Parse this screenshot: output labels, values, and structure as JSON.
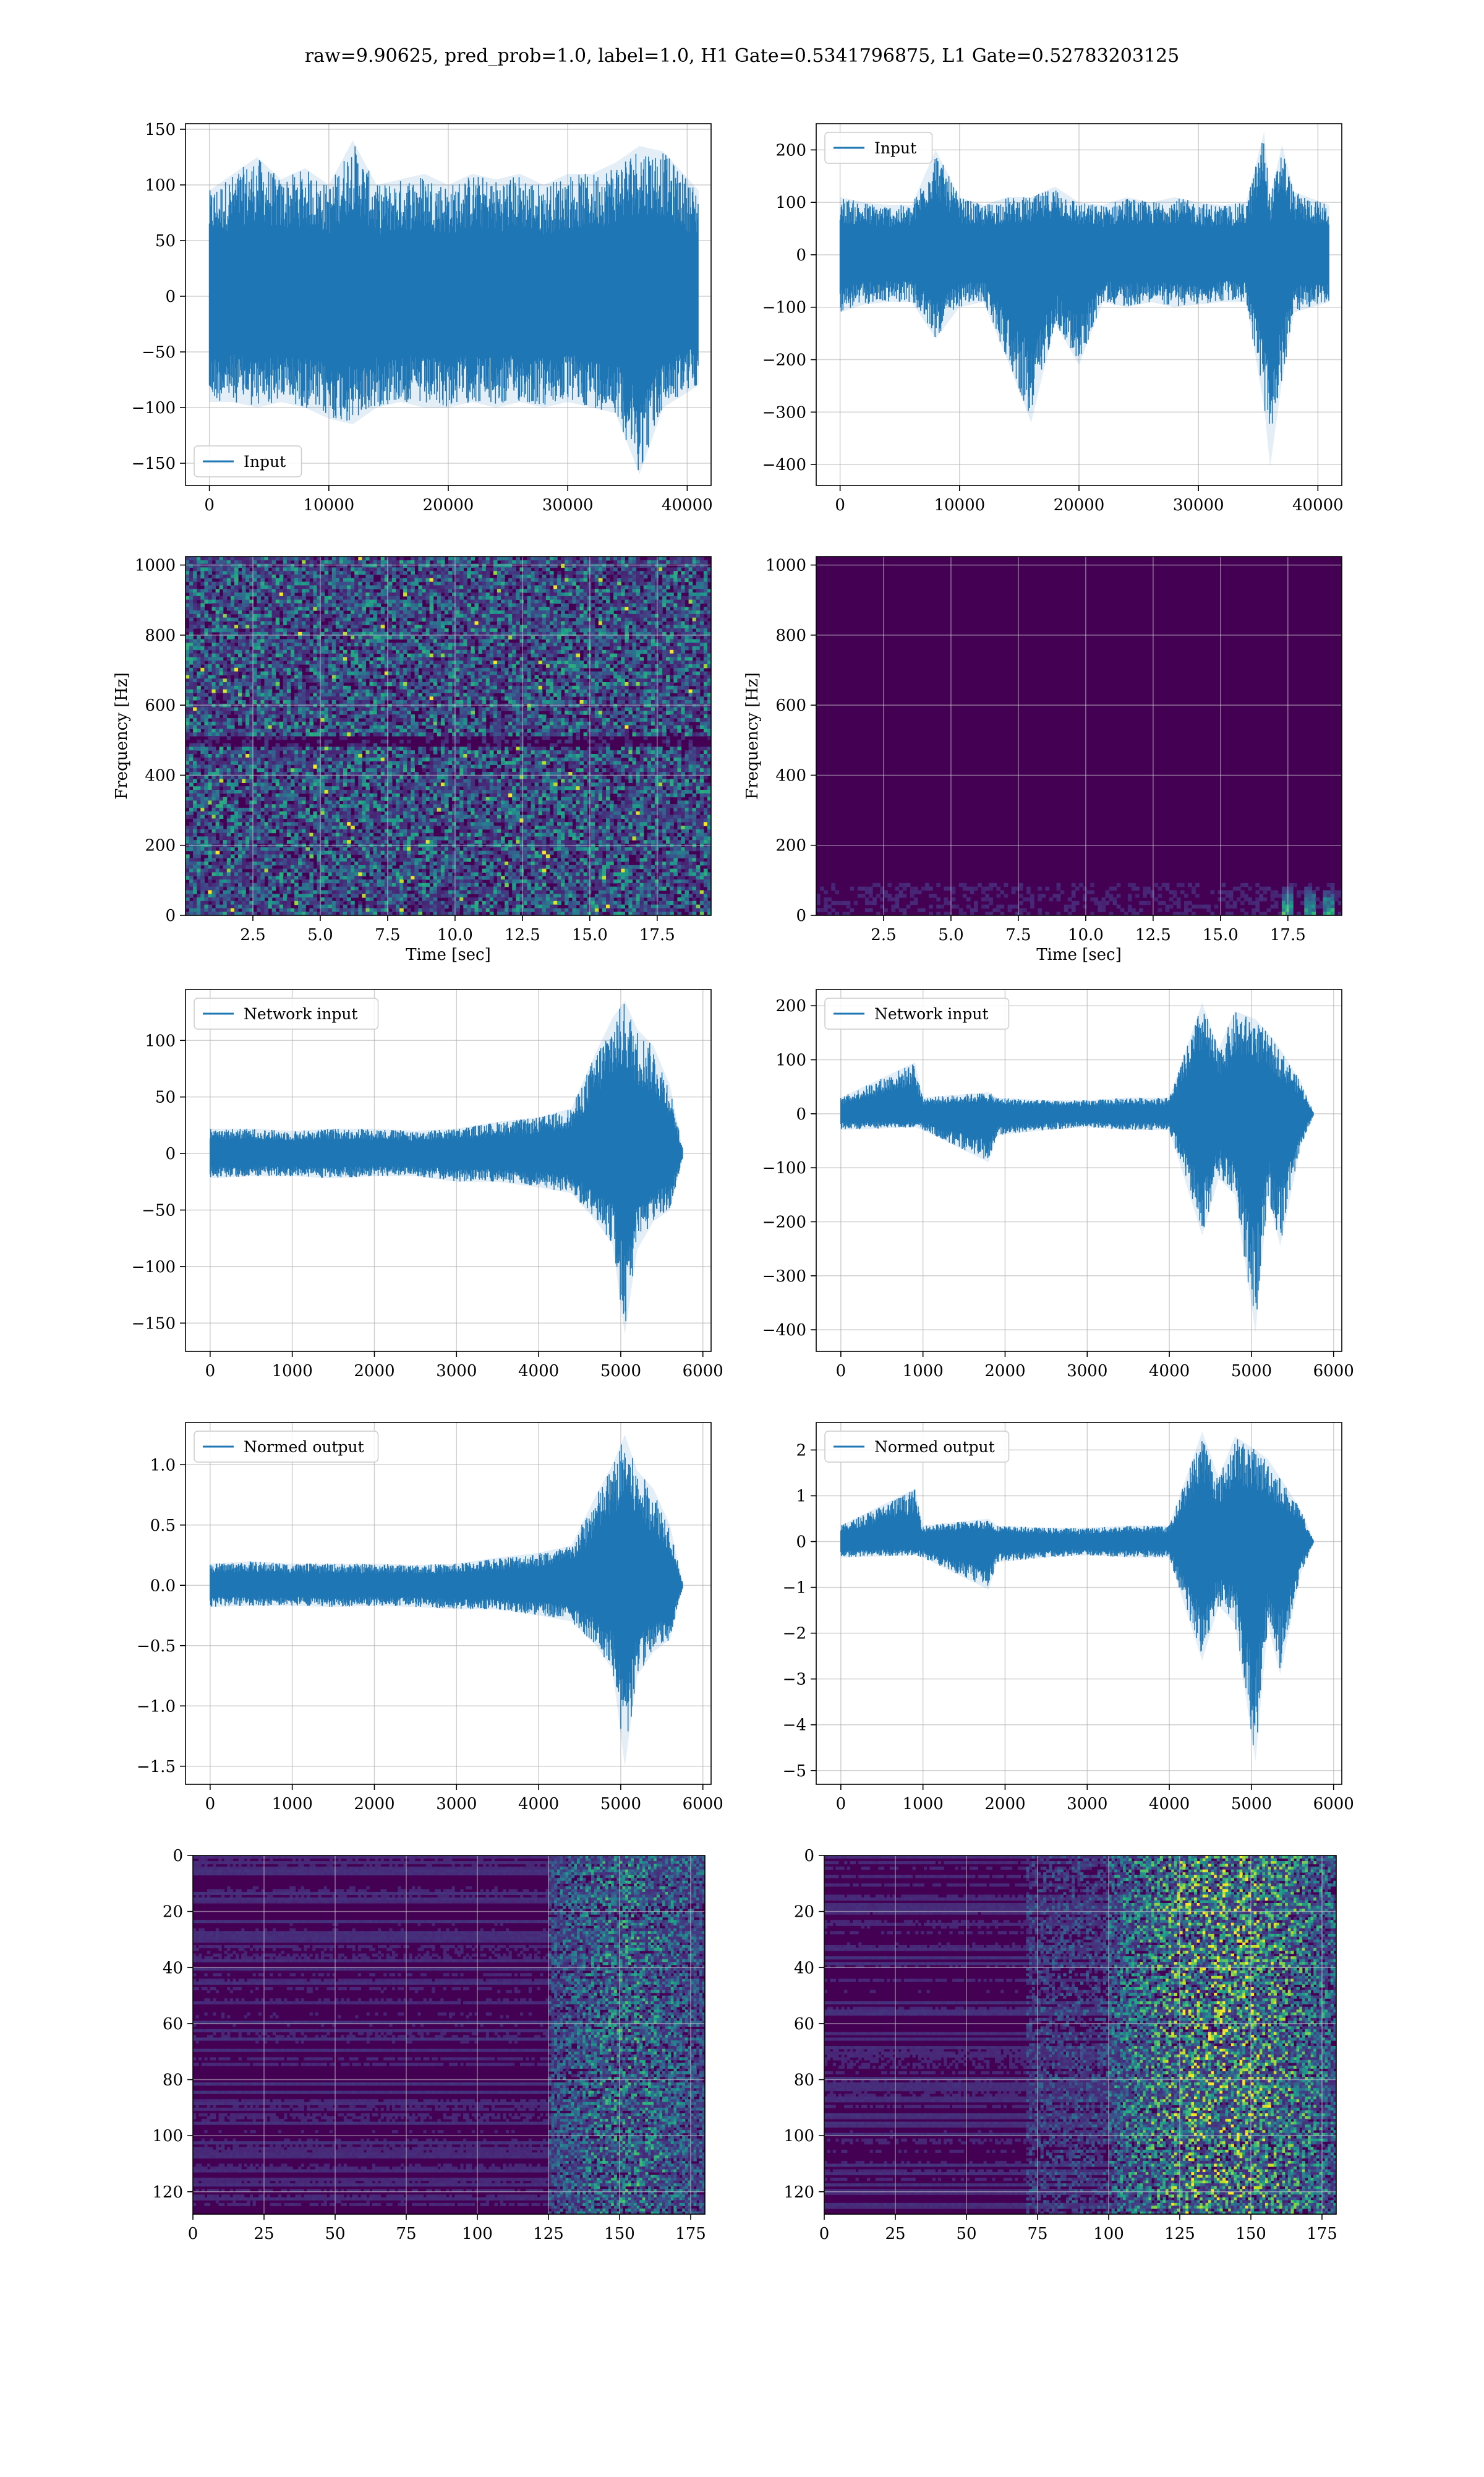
{
  "figure": {
    "title": "raw=9.90625, pred_prob=1.0, label=1.0, H1 Gate=0.5341796875, L1 Gate=0.52783203125"
  },
  "colors": {
    "line": "#1f77b4",
    "grid": "#b0b0b0",
    "viridis_dark": "#440154",
    "viridis_mid": "#21918c",
    "viridis_bright": "#fde725"
  },
  "chart_data": [
    {
      "id": "h1-input",
      "type": "line",
      "legend": "Input",
      "legend_loc": "lower-left",
      "xlim": [
        -2000,
        42000
      ],
      "ylim": [
        -170,
        155
      ],
      "xticks": [
        0,
        10000,
        20000,
        30000,
        40000
      ],
      "yticks": [
        -150,
        -100,
        -50,
        0,
        50,
        100,
        150
      ],
      "signal": {
        "n": 40960,
        "envelope": [
          [
            0,
            -95,
            95
          ],
          [
            2000,
            -95,
            110
          ],
          [
            4000,
            -100,
            125
          ],
          [
            6000,
            -95,
            105
          ],
          [
            8000,
            -100,
            115
          ],
          [
            10000,
            -110,
            100
          ],
          [
            12000,
            -115,
            140
          ],
          [
            14000,
            -100,
            100
          ],
          [
            16000,
            -95,
            105
          ],
          [
            18000,
            -100,
            110
          ],
          [
            20000,
            -100,
            100
          ],
          [
            22000,
            -95,
            110
          ],
          [
            24000,
            -100,
            105
          ],
          [
            26000,
            -95,
            110
          ],
          [
            28000,
            -100,
            100
          ],
          [
            30000,
            -95,
            110
          ],
          [
            32000,
            -100,
            110
          ],
          [
            34000,
            -105,
            120
          ],
          [
            36000,
            -160,
            135
          ],
          [
            38000,
            -100,
            130
          ],
          [
            40960,
            -80,
            95
          ]
        ]
      }
    },
    {
      "id": "l1-input",
      "type": "line",
      "legend": "Input",
      "legend_loc": "upper-left",
      "xlim": [
        -2000,
        42000
      ],
      "ylim": [
        -440,
        250
      ],
      "xticks": [
        0,
        10000,
        20000,
        30000,
        40000
      ],
      "yticks": [
        -400,
        -300,
        -200,
        -100,
        0,
        100,
        200
      ],
      "signal": {
        "n": 40960,
        "envelope": [
          [
            0,
            -110,
            110
          ],
          [
            2000,
            -95,
            100
          ],
          [
            4000,
            -90,
            95
          ],
          [
            6000,
            -90,
            95
          ],
          [
            8000,
            -160,
            200
          ],
          [
            10000,
            -100,
            110
          ],
          [
            12000,
            -90,
            95
          ],
          [
            14000,
            -200,
            110
          ],
          [
            16000,
            -320,
            110
          ],
          [
            18000,
            -130,
            130
          ],
          [
            20000,
            -210,
            100
          ],
          [
            22000,
            -90,
            95
          ],
          [
            24000,
            -100,
            110
          ],
          [
            26000,
            -90,
            100
          ],
          [
            28000,
            -100,
            110
          ],
          [
            30000,
            -95,
            100
          ],
          [
            32000,
            -90,
            95
          ],
          [
            34000,
            -90,
            100
          ],
          [
            35500,
            -290,
            235
          ],
          [
            36000,
            -405,
            110
          ],
          [
            37000,
            -240,
            210
          ],
          [
            38000,
            -110,
            120
          ],
          [
            40960,
            -90,
            95
          ]
        ]
      }
    },
    {
      "id": "h1-spectrogram",
      "type": "heatmap",
      "colormap": "viridis",
      "xlabel": "Time [sec]",
      "ylabel": "Frequency [Hz]",
      "xlim": [
        0,
        19.5
      ],
      "ylim": [
        0,
        1024
      ],
      "xticks": [
        2.5,
        5.0,
        7.5,
        10.0,
        12.5,
        15.0,
        17.5
      ],
      "yticks": [
        0,
        200,
        400,
        600,
        800,
        1000
      ],
      "mean_level": 0.25,
      "bright_spots": "scattered",
      "dark_band_hz": 500
    },
    {
      "id": "l1-spectrogram",
      "type": "heatmap",
      "colormap": "viridis",
      "xlabel": "Time [sec]",
      "ylabel": "Frequency [Hz]",
      "xlim": [
        0,
        19.5
      ],
      "ylim": [
        0,
        1024
      ],
      "xticks": [
        2.5,
        5.0,
        7.5,
        10.0,
        12.5,
        15.0,
        17.5
      ],
      "yticks": [
        0,
        200,
        400,
        600,
        800,
        1000
      ],
      "mean_level": 0.04,
      "bright_spots_sec": [
        17.5,
        18.3,
        19.0
      ]
    },
    {
      "id": "h1-network-input",
      "type": "line",
      "legend": "Network input",
      "legend_loc": "upper-left",
      "xlim": [
        -300,
        6100
      ],
      "ylim": [
        -175,
        145
      ],
      "xticks": [
        0,
        1000,
        2000,
        3000,
        4000,
        5000,
        6000
      ],
      "yticks": [
        -150,
        -100,
        -50,
        0,
        50,
        100
      ],
      "signal": {
        "n": 5760,
        "envelope": [
          [
            0,
            -22,
            22
          ],
          [
            500,
            -20,
            22
          ],
          [
            1000,
            -20,
            20
          ],
          [
            1500,
            -22,
            22
          ],
          [
            2000,
            -20,
            22
          ],
          [
            2500,
            -20,
            20
          ],
          [
            3000,
            -25,
            22
          ],
          [
            3500,
            -25,
            28
          ],
          [
            4000,
            -30,
            32
          ],
          [
            4400,
            -35,
            40
          ],
          [
            4700,
            -60,
            90
          ],
          [
            4900,
            -80,
            120
          ],
          [
            5050,
            -160,
            135
          ],
          [
            5200,
            -85,
            110
          ],
          [
            5400,
            -60,
            95
          ],
          [
            5600,
            -50,
            60
          ],
          [
            5750,
            -5,
            5
          ]
        ]
      }
    },
    {
      "id": "l1-network-input",
      "type": "line",
      "legend": "Network input",
      "legend_loc": "upper-left",
      "xlim": [
        -300,
        6100
      ],
      "ylim": [
        -440,
        230
      ],
      "xticks": [
        0,
        1000,
        2000,
        3000,
        4000,
        5000,
        6000
      ],
      "yticks": [
        -400,
        -300,
        -200,
        -100,
        0,
        100,
        200
      ],
      "signal": {
        "n": 5760,
        "envelope": [
          [
            0,
            -30,
            30
          ],
          [
            900,
            -25,
            95
          ],
          [
            1000,
            -30,
            30
          ],
          [
            1800,
            -90,
            40
          ],
          [
            1900,
            -40,
            30
          ],
          [
            2500,
            -30,
            25
          ],
          [
            3000,
            -25,
            25
          ],
          [
            3500,
            -30,
            30
          ],
          [
            4000,
            -30,
            30
          ],
          [
            4400,
            -225,
            205
          ],
          [
            4600,
            -120,
            120
          ],
          [
            4800,
            -150,
            190
          ],
          [
            5050,
            -405,
            175
          ],
          [
            5200,
            -150,
            150
          ],
          [
            5350,
            -245,
            120
          ],
          [
            5600,
            -60,
            60
          ],
          [
            5750,
            -5,
            5
          ]
        ]
      }
    },
    {
      "id": "h1-normed-output",
      "type": "line",
      "legend": "Normed output",
      "legend_loc": "upper-left",
      "xlim": [
        -300,
        6100
      ],
      "ylim": [
        -1.65,
        1.35
      ],
      "xticks": [
        0,
        1000,
        2000,
        3000,
        4000,
        5000,
        6000
      ],
      "yticks": [
        -1.5,
        -1.0,
        -0.5,
        0.0,
        0.5,
        1.0
      ],
      "signal": {
        "n": 5760,
        "envelope": [
          [
            0,
            -0.18,
            0.18
          ],
          [
            500,
            -0.17,
            0.2
          ],
          [
            1000,
            -0.17,
            0.18
          ],
          [
            1500,
            -0.18,
            0.18
          ],
          [
            2000,
            -0.17,
            0.18
          ],
          [
            2500,
            -0.18,
            0.17
          ],
          [
            3000,
            -0.2,
            0.18
          ],
          [
            3500,
            -0.2,
            0.23
          ],
          [
            4000,
            -0.25,
            0.27
          ],
          [
            4400,
            -0.3,
            0.33
          ],
          [
            4700,
            -0.5,
            0.75
          ],
          [
            4900,
            -0.7,
            1.0
          ],
          [
            5050,
            -1.5,
            1.25
          ],
          [
            5200,
            -0.75,
            0.95
          ],
          [
            5400,
            -0.55,
            0.8
          ],
          [
            5600,
            -0.45,
            0.5
          ],
          [
            5750,
            -0.03,
            0.03
          ]
        ]
      }
    },
    {
      "id": "l1-normed-output",
      "type": "line",
      "legend": "Normed output",
      "legend_loc": "upper-left",
      "xlim": [
        -300,
        6100
      ],
      "ylim": [
        -5.3,
        2.6
      ],
      "xticks": [
        0,
        1000,
        2000,
        3000,
        4000,
        5000,
        6000
      ],
      "yticks": [
        -5,
        -4,
        -3,
        -2,
        -1,
        0,
        1,
        2
      ],
      "signal": {
        "n": 5760,
        "envelope": [
          [
            0,
            -0.35,
            0.35
          ],
          [
            900,
            -0.3,
            1.15
          ],
          [
            1000,
            -0.35,
            0.35
          ],
          [
            1800,
            -1.05,
            0.5
          ],
          [
            1900,
            -0.45,
            0.35
          ],
          [
            2500,
            -0.35,
            0.3
          ],
          [
            3000,
            -0.3,
            0.3
          ],
          [
            3500,
            -0.35,
            0.35
          ],
          [
            4000,
            -0.35,
            0.35
          ],
          [
            4400,
            -2.6,
            2.4
          ],
          [
            4600,
            -1.4,
            1.4
          ],
          [
            4800,
            -1.8,
            2.3
          ],
          [
            5050,
            -4.8,
            2.0
          ],
          [
            5200,
            -1.8,
            1.8
          ],
          [
            5350,
            -2.9,
            1.4
          ],
          [
            5600,
            -0.7,
            0.7
          ],
          [
            5750,
            -0.05,
            0.05
          ]
        ]
      }
    },
    {
      "id": "h1-feature-map",
      "type": "heatmap",
      "colormap": "viridis",
      "xlim": [
        0,
        180
      ],
      "ylim": [
        128,
        0
      ],
      "xticks": [
        0,
        25,
        50,
        75,
        100,
        125,
        150,
        175
      ],
      "yticks": [
        0,
        20,
        40,
        60,
        80,
        100,
        120
      ],
      "activity_onset_col": 125
    },
    {
      "id": "l1-feature-map",
      "type": "heatmap",
      "colormap": "viridis",
      "xlim": [
        0,
        180
      ],
      "ylim": [
        128,
        0
      ],
      "xticks": [
        0,
        25,
        50,
        75,
        100,
        125,
        150,
        175
      ],
      "yticks": [
        0,
        20,
        40,
        60,
        80,
        100,
        120
      ],
      "activity_onset_col": 100
    }
  ]
}
